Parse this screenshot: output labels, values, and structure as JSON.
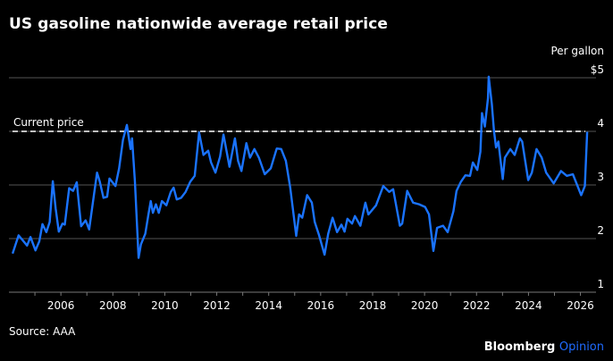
{
  "title": "US gasoline nationwide average retail price",
  "unit_label": "Per gallon",
  "source": "Source: AAA",
  "brand": {
    "name": "Bloomberg",
    "suffix": "Opinion"
  },
  "colors": {
    "line": "#1a73ff",
    "background": "#000000",
    "grid": "#555555",
    "reference": "#ffffff",
    "brand_accent": "#1f6bff"
  },
  "chart_data": {
    "type": "line",
    "title": "US gasoline nationwide average retail price",
    "ylabel": "Per gallon",
    "xlim": [
      2004,
      2026.6
    ],
    "ylim": [
      1,
      5
    ],
    "yticks": [
      {
        "v": 5,
        "label": "$5"
      },
      {
        "v": 4,
        "label": "4"
      },
      {
        "v": 3,
        "label": "3"
      },
      {
        "v": 2,
        "label": "2"
      },
      {
        "v": 1,
        "label": "1"
      }
    ],
    "xticks": [
      2006,
      2008,
      2010,
      2012,
      2014,
      2016,
      2018,
      2020,
      2022,
      2024,
      2026
    ],
    "grid": true,
    "reference_line": {
      "label": "Current price",
      "value": 4.0,
      "style": "dashed"
    },
    "series": [
      {
        "x": [
          2004.14,
          2004.37,
          2004.7,
          2004.83,
          2005.02,
          2005.17,
          2005.29,
          2005.44,
          2005.57,
          2005.69,
          2005.8,
          2005.92,
          2006.06,
          2006.15,
          2006.32,
          2006.47,
          2006.61,
          2006.78,
          2006.95,
          2007.09,
          2007.2,
          2007.39,
          2007.5,
          2007.64,
          2007.78,
          2007.87,
          2008.1,
          2008.24,
          2008.39,
          2008.54,
          2008.68,
          2008.74,
          2008.85,
          2008.99,
          2009.08,
          2009.25,
          2009.37,
          2009.46,
          2009.54,
          2009.66,
          2009.77,
          2009.89,
          2010.06,
          2010.23,
          2010.34,
          2010.46,
          2010.63,
          2010.8,
          2010.98,
          2011.15,
          2011.32,
          2011.49,
          2011.67,
          2011.78,
          2011.95,
          2012.13,
          2012.26,
          2012.49,
          2012.7,
          2012.82,
          2012.95,
          2013.14,
          2013.28,
          2013.45,
          2013.62,
          2013.85,
          2014.08,
          2014.31,
          2014.48,
          2014.66,
          2014.83,
          2015.06,
          2015.17,
          2015.29,
          2015.48,
          2015.66,
          2015.77,
          2015.94,
          2016.15,
          2016.29,
          2016.46,
          2016.63,
          2016.8,
          2016.92,
          2017.03,
          2017.21,
          2017.32,
          2017.53,
          2017.72,
          2017.84,
          2018.13,
          2018.41,
          2018.64,
          2018.79,
          2019.05,
          2019.14,
          2019.33,
          2019.56,
          2019.79,
          2020.02,
          2020.17,
          2020.34,
          2020.48,
          2020.71,
          2020.89,
          2021.11,
          2021.23,
          2021.4,
          2021.57,
          2021.75,
          2021.86,
          2022.03,
          2022.15,
          2022.21,
          2022.32,
          2022.44,
          2022.47,
          2022.59,
          2022.67,
          2022.75,
          2022.84,
          2023.01,
          2023.09,
          2023.3,
          2023.47,
          2023.67,
          2023.76,
          2023.99,
          2024.13,
          2024.31,
          2024.51,
          2024.68,
          2024.97,
          2025.25,
          2025.48,
          2025.71,
          2026.03,
          2026.17,
          2026.26
        ],
        "y": [
          1.72,
          2.06,
          1.87,
          2.03,
          1.78,
          1.95,
          2.27,
          2.12,
          2.31,
          3.07,
          2.56,
          2.13,
          2.28,
          2.26,
          2.94,
          2.89,
          3.05,
          2.23,
          2.34,
          2.17,
          2.56,
          3.23,
          3.06,
          2.76,
          2.78,
          3.12,
          2.98,
          3.31,
          3.84,
          4.12,
          3.67,
          3.87,
          3.06,
          1.64,
          1.89,
          2.09,
          2.45,
          2.7,
          2.48,
          2.64,
          2.48,
          2.7,
          2.62,
          2.87,
          2.95,
          2.73,
          2.76,
          2.87,
          3.06,
          3.17,
          3.98,
          3.56,
          3.64,
          3.42,
          3.23,
          3.53,
          3.94,
          3.34,
          3.87,
          3.45,
          3.26,
          3.78,
          3.51,
          3.67,
          3.51,
          3.2,
          3.31,
          3.68,
          3.67,
          3.45,
          2.95,
          2.05,
          2.45,
          2.39,
          2.81,
          2.67,
          2.31,
          2.06,
          1.7,
          2.09,
          2.39,
          2.12,
          2.26,
          2.13,
          2.37,
          2.28,
          2.42,
          2.24,
          2.67,
          2.45,
          2.62,
          2.98,
          2.87,
          2.92,
          2.24,
          2.28,
          2.89,
          2.67,
          2.64,
          2.59,
          2.45,
          1.77,
          2.2,
          2.24,
          2.12,
          2.51,
          2.89,
          3.06,
          3.18,
          3.17,
          3.42,
          3.28,
          3.62,
          4.34,
          4.09,
          4.62,
          5.02,
          4.51,
          4.01,
          3.7,
          3.81,
          3.11,
          3.51,
          3.67,
          3.56,
          3.87,
          3.81,
          3.09,
          3.23,
          3.67,
          3.51,
          3.23,
          3.03,
          3.26,
          3.17,
          3.2,
          2.81,
          2.98,
          3.99
        ]
      }
    ]
  }
}
